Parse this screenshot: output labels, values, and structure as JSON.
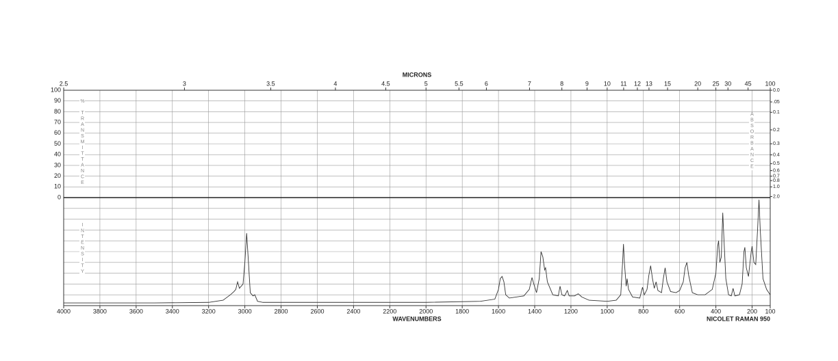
{
  "chart_data": {
    "type": "line",
    "x_label": "WAVENUMBERS",
    "x2_label": "MICRONS",
    "footer": "NICOLET RAMAN 950",
    "y_label": "% TRANSMITTANCE",
    "y2_label": "ABSORBANCE",
    "intensity_label": "INTENSITY",
    "xlim": [
      4000,
      100
    ],
    "xticks": [
      4000,
      3800,
      3600,
      3400,
      3200,
      3000,
      2800,
      2600,
      2400,
      2200,
      2000,
      1800,
      1600,
      1400,
      1200,
      1000,
      800,
      600,
      400,
      200,
      100
    ],
    "x2ticks": [
      2.5,
      3,
      3.5,
      4,
      4.5,
      5,
      5.5,
      6,
      7,
      8,
      9,
      10,
      11,
      12,
      13,
      15,
      20,
      25,
      30,
      45,
      100
    ],
    "ylim": [
      0,
      100
    ],
    "yticks": [
      0,
      10,
      20,
      30,
      40,
      50,
      60,
      70,
      80,
      90,
      100
    ],
    "y2ticks": [
      {
        "value": 0,
        "label": "0.0"
      },
      {
        "value": 0.05,
        "label": ".05"
      },
      0.1,
      0.2,
      0.3,
      0.4,
      0.5,
      0.6,
      0.7,
      0.8,
      {
        "value": 1,
        "label": "1.0"
      },
      {
        "value": 2,
        "label": "2.0"
      }
    ],
    "intensity_lim": [
      0,
      100
    ],
    "intensity_grid": [
      0,
      10,
      20,
      30,
      40,
      50,
      60,
      70,
      80,
      90,
      100
    ],
    "grid": true,
    "series": [
      {
        "color": "#333333",
        "x": [
          4000,
          3500,
          3200,
          3120,
          3080,
          3060,
          3050,
          3040,
          3030,
          3010,
          3000,
          2990,
          2980,
          2970,
          2955,
          2945,
          2930,
          2900,
          2500,
          2000,
          1700,
          1620,
          1600,
          1590,
          1580,
          1570,
          1560,
          1540,
          1460,
          1430,
          1415,
          1405,
          1390,
          1375,
          1365,
          1355,
          1345,
          1340,
          1330,
          1300,
          1270,
          1260,
          1250,
          1235,
          1220,
          1210,
          1180,
          1160,
          1140,
          1100,
          1000,
          950,
          925,
          915,
          910,
          905,
          895,
          890,
          882,
          860,
          820,
          805,
          795,
          780,
          770,
          760,
          750,
          740,
          730,
          720,
          700,
          690,
          680,
          670,
          650,
          620,
          600,
          580,
          570,
          560,
          550,
          530,
          500,
          460,
          420,
          400,
          390,
          385,
          378,
          370,
          362,
          355,
          345,
          330,
          315,
          305,
          295,
          270,
          255,
          245,
          240,
          232,
          220,
          205,
          200,
          190,
          180,
          170,
          162,
          155,
          140,
          120,
          100
        ],
        "values": [
          2.5,
          2.5,
          3,
          5,
          10,
          13,
          15,
          22,
          16,
          20,
          40,
          67,
          40,
          12,
          9,
          10,
          4,
          3,
          3,
          3,
          4,
          6,
          15,
          25,
          27,
          22,
          10,
          7,
          9,
          15,
          26,
          20,
          12,
          25,
          50,
          45,
          33,
          35,
          22,
          10,
          9,
          18,
          10,
          9,
          14,
          9,
          9,
          11,
          8,
          5,
          4,
          5,
          10,
          40,
          57,
          40,
          18,
          25,
          15,
          8,
          7,
          17,
          10,
          15,
          28,
          37,
          25,
          16,
          22,
          14,
          12,
          25,
          35,
          22,
          13,
          12,
          14,
          22,
          35,
          40,
          28,
          12,
          10,
          10,
          15,
          30,
          55,
          60,
          40,
          45,
          86,
          60,
          25,
          10,
          9,
          16,
          9,
          10,
          20,
          50,
          54,
          35,
          27,
          50,
          55,
          40,
          38,
          70,
          98,
          70,
          25,
          15,
          10
        ]
      }
    ]
  }
}
